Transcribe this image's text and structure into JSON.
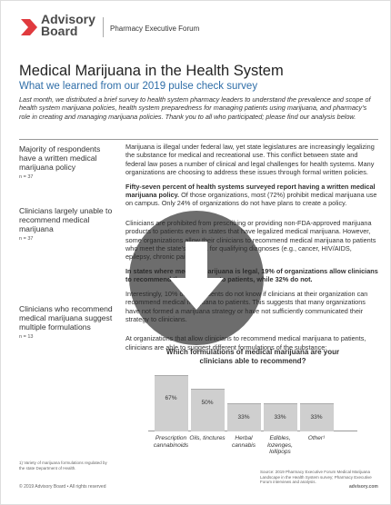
{
  "header": {
    "brand": "Advisory Board",
    "forum": "Pharmacy Executive Forum"
  },
  "title": "Medical Marijuana in the Health System",
  "subtitle": "What we learned from our 2019 pulse check survey",
  "intro": "Last month, we distributed a brief survey to health system pharmacy leaders to understand the prevalence and scope of health system marijuana policies, health system preparedness for managing patients using marijuana, and pharmacy's role in creating and managing marijuana policies. Thank you to all who participated; please find our analysis below.",
  "sections": [
    {
      "heading": "Majority of respondents have a written medical marijuana policy",
      "n": "n = 37"
    },
    {
      "heading": "Clinicians largely unable to recommend medical marijuana",
      "n": "n = 37"
    },
    {
      "heading": "Clinicians who recommend medical marijuana suggest multiple formulations",
      "n": "n = 13"
    }
  ],
  "paragraphs": [
    {
      "text": "Marijuana is illegal under federal law, yet state legislatures are increasingly legalizing the substance for medical and recreational use. This conflict between state and federal law poses a number of clinical and legal challenges for health systems. Many organizations are choosing to address these issues through formal written policies."
    },
    {
      "bold": "Fifty-seven percent of health systems surveyed report having a written medical marijuana policy.",
      "text": " Of those organizations, most (72%) prohibit medical marijuana use on campus. Only 24% of organizations do not have plans to create a policy."
    },
    {
      "text": "Clinicians are prohibited from prescribing or providing non-FDA-approved marijuana products to patients even in states that have legalized medical marijuana. However, some organizations allow their clinicians to recommend medical marijuana to patients who meet the state's criteria for qualifying diagnoses (e.g., cancer, HIV/AIDS, epilepsy, chronic pain)."
    },
    {
      "bold": "In states where medical marijuana is legal, 19% of organizations allow clinicians to recommend the substance to patients, while 32% do not."
    },
    {
      "text": "Interestingly, 10% of respondents do not know if clinicians at their organization can recommend medical marijuana to patients. This suggests that many organizations have not formed a marijuana strategy or have not sufficiently communicated their strategy to clinicians."
    },
    {
      "text": "At organizations that allow clinicians to recommend medical marijuana to patients, clinicians are able to suggest different formulations of the substance:"
    }
  ],
  "chart": {
    "type": "bar",
    "title": "Which formulations of medical marijuana are your clinicians able to recommend?",
    "categories": [
      "Prescription cannabinoids",
      "Oils, tinctures",
      "Herbal cannabis",
      "Edibles, lozenges, lollipops",
      "Other¹"
    ],
    "values": [
      67,
      50,
      33,
      33,
      33
    ],
    "value_labels": [
      "67%",
      "50%",
      "33%",
      "33%",
      "33%"
    ],
    "color": "#cfcfcf"
  },
  "footnote": "1) Variety of marijuana formulations regulated by the state Department of Health.",
  "source": "Source: 2019 Pharmacy Executive Forum Medical Marijuana Landscape in the Health System survey; Pharmacy Executive Forum interviews and analysis.",
  "copyright": "© 2019 Advisory Board • All rights reserved",
  "website": "advisory.com"
}
